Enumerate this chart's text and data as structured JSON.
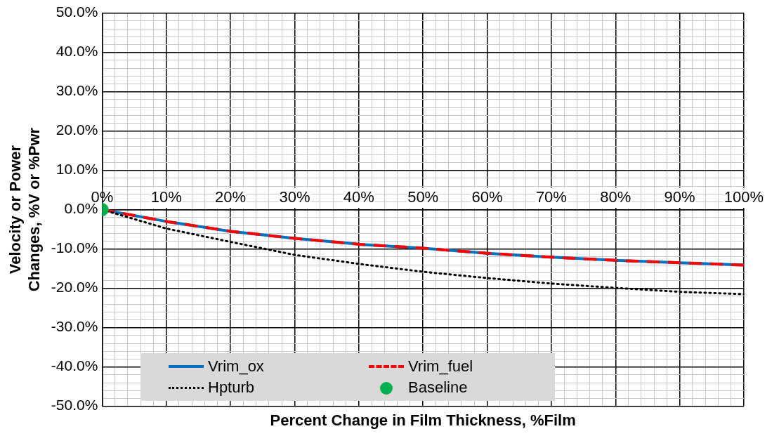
{
  "chart_data": {
    "type": "line",
    "xlabel": "Percent Change in Film Thickness, %Film",
    "ylabel": "Velocity or Power Changes, %V or %Pwr",
    "x": [
      0,
      10,
      20,
      30,
      40,
      50,
      60,
      70,
      80,
      90,
      100
    ],
    "xlim": [
      0,
      100
    ],
    "xticks": [
      {
        "value": 0,
        "label": "0%"
      },
      {
        "value": 2,
        "label": null
      },
      {
        "value": 4,
        "label": null
      },
      {
        "value": 6,
        "label": null
      },
      {
        "value": 8,
        "label": null
      },
      {
        "value": 10,
        "label": "10%"
      },
      {
        "value": 12,
        "label": null
      },
      {
        "value": 14,
        "label": null
      },
      {
        "value": 16,
        "label": null
      },
      {
        "value": 18,
        "label": null
      },
      {
        "value": 20,
        "label": "20%"
      },
      {
        "value": 22,
        "label": null
      },
      {
        "value": 24,
        "label": null
      },
      {
        "value": 26,
        "label": null
      },
      {
        "value": 28,
        "label": null
      },
      {
        "value": 30,
        "label": "30%"
      },
      {
        "value": 32,
        "label": null
      },
      {
        "value": 34,
        "label": null
      },
      {
        "value": 36,
        "label": null
      },
      {
        "value": 38,
        "label": null
      },
      {
        "value": 40,
        "label": "40%"
      },
      {
        "value": 42,
        "label": null
      },
      {
        "value": 44,
        "label": null
      },
      {
        "value": 46,
        "label": null
      },
      {
        "value": 48,
        "label": null
      },
      {
        "value": 50,
        "label": "50%"
      },
      {
        "value": 52,
        "label": null
      },
      {
        "value": 54,
        "label": null
      },
      {
        "value": 56,
        "label": null
      },
      {
        "value": 58,
        "label": null
      },
      {
        "value": 60,
        "label": "60%"
      },
      {
        "value": 62,
        "label": null
      },
      {
        "value": 64,
        "label": null
      },
      {
        "value": 66,
        "label": null
      },
      {
        "value": 68,
        "label": null
      },
      {
        "value": 70,
        "label": "70%"
      },
      {
        "value": 72,
        "label": null
      },
      {
        "value": 74,
        "label": null
      },
      {
        "value": 76,
        "label": null
      },
      {
        "value": 78,
        "label": null
      },
      {
        "value": 80,
        "label": "80%"
      },
      {
        "value": 82,
        "label": null
      },
      {
        "value": 84,
        "label": null
      },
      {
        "value": 86,
        "label": null
      },
      {
        "value": 88,
        "label": null
      },
      {
        "value": 90,
        "label": "90%"
      },
      {
        "value": 92,
        "label": null
      },
      {
        "value": 94,
        "label": null
      },
      {
        "value": 96,
        "label": null
      },
      {
        "value": 98,
        "label": null
      },
      {
        "value": 100,
        "label": "100%"
      }
    ],
    "ylim": [
      -50,
      50
    ],
    "yticks": [
      {
        "value": -50,
        "label": "-50.0%"
      },
      {
        "value": -48,
        "label": null
      },
      {
        "value": -46,
        "label": null
      },
      {
        "value": -44,
        "label": null
      },
      {
        "value": -42,
        "label": null
      },
      {
        "value": -40,
        "label": "-40.0%"
      },
      {
        "value": -38,
        "label": null
      },
      {
        "value": -36,
        "label": null
      },
      {
        "value": -34,
        "label": null
      },
      {
        "value": -32,
        "label": null
      },
      {
        "value": -30,
        "label": "-30.0%"
      },
      {
        "value": -28,
        "label": null
      },
      {
        "value": -26,
        "label": null
      },
      {
        "value": -24,
        "label": null
      },
      {
        "value": -22,
        "label": null
      },
      {
        "value": -20,
        "label": "-20.0%"
      },
      {
        "value": -18,
        "label": null
      },
      {
        "value": -16,
        "label": null
      },
      {
        "value": -14,
        "label": null
      },
      {
        "value": -12,
        "label": null
      },
      {
        "value": -10,
        "label": "-10.0%"
      },
      {
        "value": -8,
        "label": null
      },
      {
        "value": -6,
        "label": null
      },
      {
        "value": -4,
        "label": null
      },
      {
        "value": -2,
        "label": null
      },
      {
        "value": 0,
        "label": "0.0%"
      },
      {
        "value": 2,
        "label": null
      },
      {
        "value": 4,
        "label": null
      },
      {
        "value": 6,
        "label": null
      },
      {
        "value": 8,
        "label": null
      },
      {
        "value": 10,
        "label": "10.0%"
      },
      {
        "value": 12,
        "label": null
      },
      {
        "value": 14,
        "label": null
      },
      {
        "value": 16,
        "label": null
      },
      {
        "value": 18,
        "label": null
      },
      {
        "value": 20,
        "label": "20.0%"
      },
      {
        "value": 22,
        "label": null
      },
      {
        "value": 24,
        "label": null
      },
      {
        "value": 26,
        "label": null
      },
      {
        "value": 28,
        "label": null
      },
      {
        "value": 30,
        "label": "30.0%"
      },
      {
        "value": 32,
        "label": null
      },
      {
        "value": 34,
        "label": null
      },
      {
        "value": 36,
        "label": null
      },
      {
        "value": 38,
        "label": null
      },
      {
        "value": 40,
        "label": "40.0%"
      },
      {
        "value": 42,
        "label": null
      },
      {
        "value": 44,
        "label": null
      },
      {
        "value": 46,
        "label": null
      },
      {
        "value": 48,
        "label": null
      },
      {
        "value": 50,
        "label": "50.0%"
      }
    ],
    "grid": true,
    "legend": "bottom left",
    "marker": "none",
    "series": [
      {
        "name": "Vrim_ox",
        "color": "#0070c0",
        "line_style": "solid",
        "values": [
          0,
          -3.0,
          -5.5,
          -7.3,
          -8.8,
          -9.8,
          -11.1,
          -12.1,
          -12.9,
          -13.5,
          -14.1
        ]
      },
      {
        "name": "Vrim_fuel",
        "color": "#ff0000",
        "line_style": "dashed",
        "values": [
          0,
          -3.0,
          -5.5,
          -7.3,
          -8.8,
          -9.8,
          -11.1,
          -12.1,
          -12.9,
          -13.5,
          -14.1
        ]
      },
      {
        "name": "Hpturb",
        "color": "#000000",
        "line_style": "dotted",
        "values": [
          0,
          -4.8,
          -8.2,
          -11.5,
          -13.8,
          -15.8,
          -17.4,
          -18.8,
          -19.9,
          -20.9,
          -21.5
        ]
      },
      {
        "name": "Baseline",
        "type": "scatter",
        "color": "#00b050",
        "marker": "circle",
        "x": [
          0
        ],
        "values": [
          0
        ]
      }
    ]
  }
}
